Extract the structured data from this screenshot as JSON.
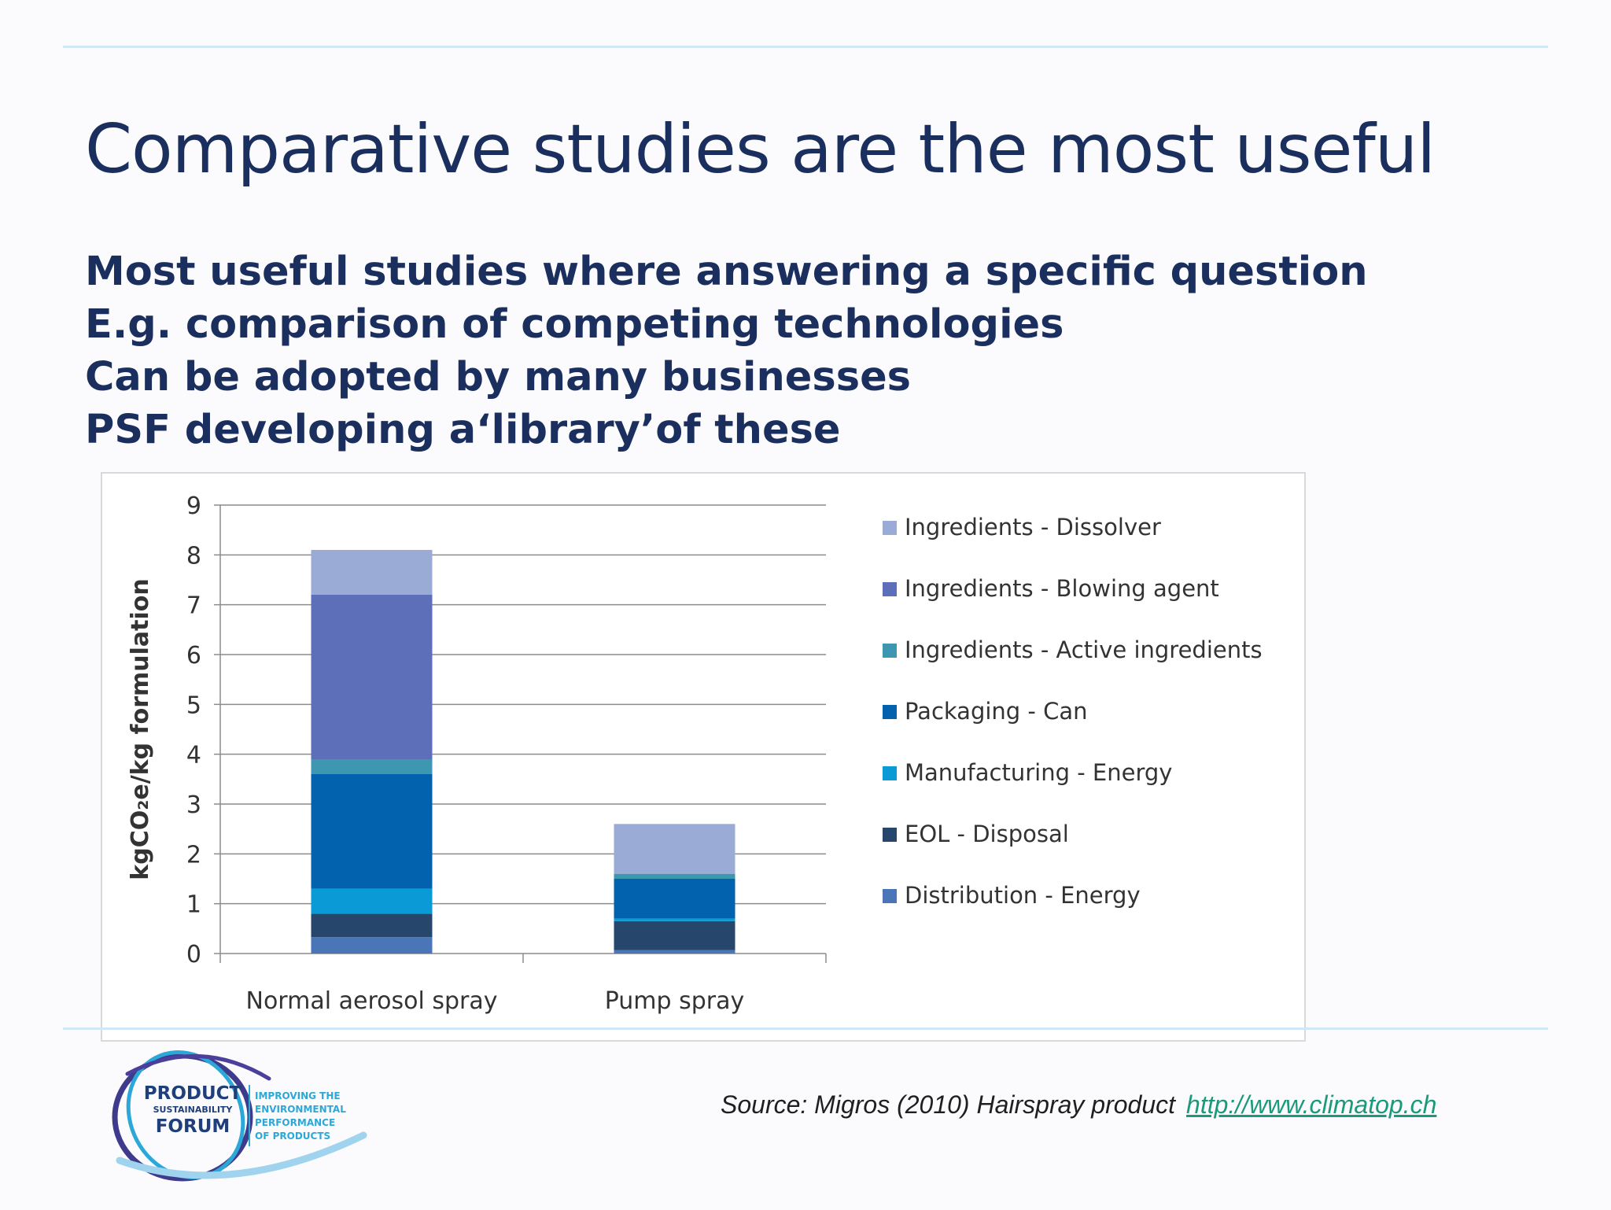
{
  "slide": {
    "title": "Comparative studies are the most useful",
    "bullets": [
      "Most useful studies where answering a specific question",
      "E.g. comparison of competing technologies",
      "Can be adopted by many businesses",
      "PSF developing a‘library’of these"
    ],
    "source_text": "Source: Migros (2010) Hairspray product",
    "source_link": "http://www.climatop.ch"
  },
  "logo": {
    "name_line1": "PRODUCT",
    "name_line2": "SUSTAINABILITY",
    "name_line3": "FORUM",
    "tagline": [
      "IMPROVING THE",
      "ENVIRONMENTAL",
      "PERFORMANCE",
      "OF PRODUCTS"
    ]
  },
  "colors": {
    "title": "#1b2f5e",
    "rule": "#cfe8f6",
    "link": "#1a9a7a"
  },
  "chart_data": {
    "type": "bar",
    "stacked": true,
    "title": "",
    "xlabel": "",
    "ylabel": "kgCO₂e/kg formulation",
    "ylim": [
      0,
      9
    ],
    "yticks": [
      0,
      1,
      2,
      3,
      4,
      5,
      6,
      7,
      8,
      9
    ],
    "grid": true,
    "legend_position": "right",
    "categories": [
      "Normal aerosol spray",
      "Pump spray"
    ],
    "series": [
      {
        "name": "Distribution - Energy",
        "color": "#4a76b8",
        "values": [
          0.33,
          0.07
        ]
      },
      {
        "name": "EOL - Disposal",
        "color": "#27466c",
        "values": [
          0.47,
          0.58
        ]
      },
      {
        "name": "Manufacturing - Energy",
        "color": "#0a9bd6",
        "values": [
          0.5,
          0.05
        ]
      },
      {
        "name": "Packaging - Can",
        "color": "#0362ae",
        "values": [
          2.3,
          0.8
        ]
      },
      {
        "name": "Ingredients - Active ingredients",
        "color": "#3d97b0",
        "values": [
          0.3,
          0.1
        ]
      },
      {
        "name": "Ingredients - Blowing agent",
        "color": "#5d6fb8",
        "values": [
          3.3,
          0
        ]
      },
      {
        "name": "Ingredients - Dissolver",
        "color": "#9aabd5",
        "values": [
          0.9,
          1.0
        ]
      }
    ]
  }
}
